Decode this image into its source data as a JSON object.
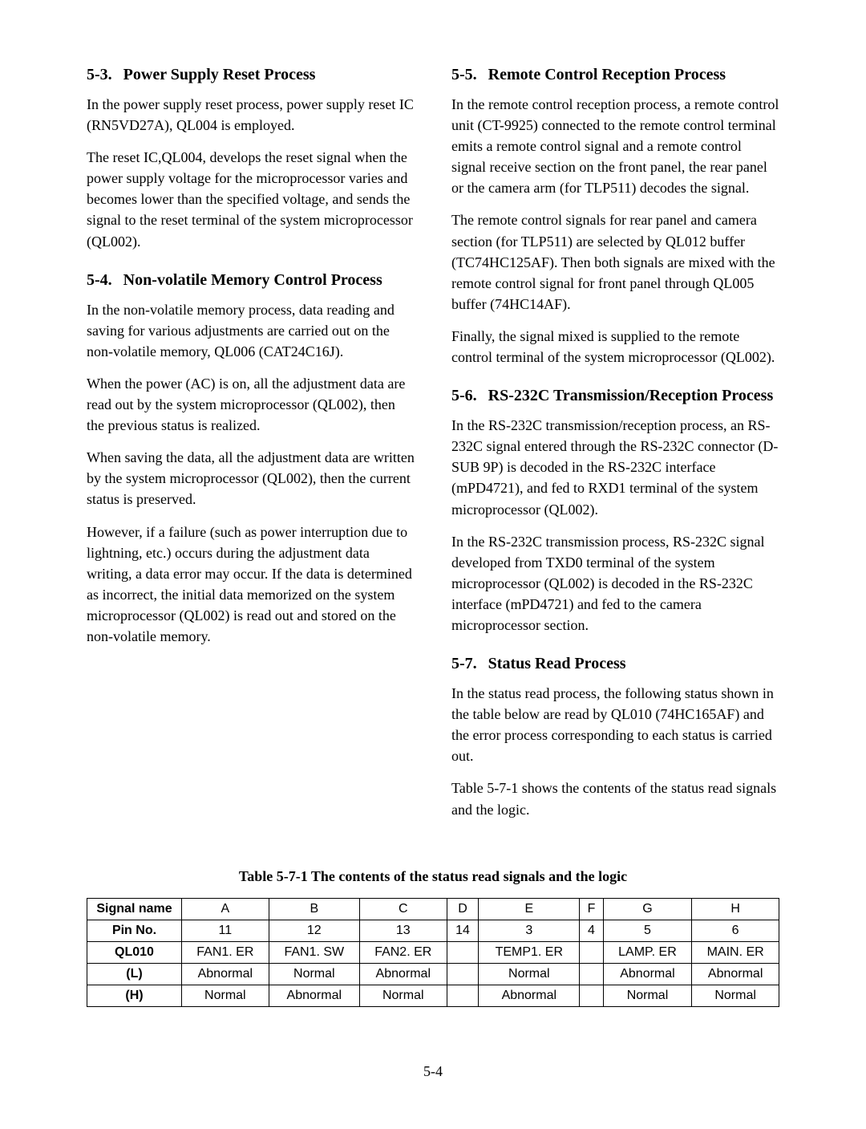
{
  "left": {
    "sec53": {
      "num": "5-3.",
      "title": "Power Supply Reset Process",
      "p1": "In the power supply reset process, power supply reset IC (RN5VD27A), QL004 is employed.",
      "p2": "The reset IC,QL004, develops the reset signal when the power supply voltage for the microprocessor varies and becomes lower than the specified voltage, and sends the signal to the reset terminal of the system microprocessor (QL002)."
    },
    "sec54": {
      "num": "5-4.",
      "title": "Non-volatile Memory Control Process",
      "p1": "In the non-volatile memory process, data reading and saving for various adjustments are carried out on the non-volatile memory, QL006 (CAT24C16J).",
      "p2": "When the power (AC) is on, all the adjustment data are read out by the system microprocessor (QL002), then the previous status is realized.",
      "p3": "When saving the data, all the adjustment data are written by the system microprocessor (QL002), then the current status is preserved.",
      "p4": "However, if a failure (such as power interruption due to lightning, etc.) occurs during the adjustment data writing, a data error may occur. If the data is determined as incorrect, the initial data memorized on the system microprocessor (QL002) is read out and stored on the non-volatile memory."
    }
  },
  "right": {
    "sec55": {
      "num": "5-5.",
      "title": "Remote Control Reception Process",
      "p1": "In the remote control reception process, a remote control unit (CT-9925) connected to the remote control terminal emits a remote control signal and a remote control signal receive section on the front panel, the rear panel or the camera arm (for TLP511) decodes the signal.",
      "p2": "The remote control signals for rear panel and camera section (for TLP511) are selected by QL012 buffer (TC74HC125AF). Then both signals are mixed with the remote control signal for front panel through QL005 buffer (74HC14AF).",
      "p3": "Finally, the signal mixed is supplied to the remote control terminal of the system microprocessor (QL002)."
    },
    "sec56": {
      "num": "5-6.",
      "title": "RS-232C Transmission/Reception Process",
      "p1": "In the RS-232C transmission/reception process, an RS-232C signal entered through the RS-232C connector (D-SUB 9P) is decoded in the RS-232C interface (mPD4721), and fed to RXD1 terminal of the system microprocessor (QL002).",
      "p2": "In the RS-232C transmission process, RS-232C signal developed from TXD0 terminal of the system microprocessor (QL002) is decoded in the RS-232C interface (mPD4721) and fed to the camera microprocessor section."
    },
    "sec57": {
      "num": "5-7.",
      "title": "Status Read Process",
      "p1": "In the status read process, the following status shown in the table below are read by QL010 (74HC165AF) and the error process corresponding to each status is carried out.",
      "p2": "Table 5-7-1 shows the contents of the status read signals and the logic."
    }
  },
  "table": {
    "caption": "Table 5-7-1  The contents of the status read signals and the logic",
    "row_headers": [
      "Signal name",
      "Pin No.",
      "QL010",
      "(L)",
      "(H)"
    ],
    "cols": [
      "A",
      "B",
      "C",
      "D",
      "E",
      "F",
      "G",
      "H"
    ],
    "rows": [
      [
        "11",
        "12",
        "13",
        "14",
        "3",
        "4",
        "5",
        "6"
      ],
      [
        "FAN1. ER",
        "FAN1. SW",
        "FAN2. ER",
        "",
        "TEMP1. ER",
        "",
        "LAMP. ER",
        "MAIN. ER"
      ],
      [
        "Abnormal",
        "Normal",
        "Abnormal",
        "",
        "Normal",
        "",
        "Abnormal",
        "Abnormal"
      ],
      [
        "Normal",
        "Abnormal",
        "Normal",
        "",
        "Abnormal",
        "",
        "Normal",
        "Normal"
      ]
    ],
    "border_color": "#000000",
    "font_family": "Arial, Helvetica, sans-serif"
  },
  "page_number": "5-4"
}
